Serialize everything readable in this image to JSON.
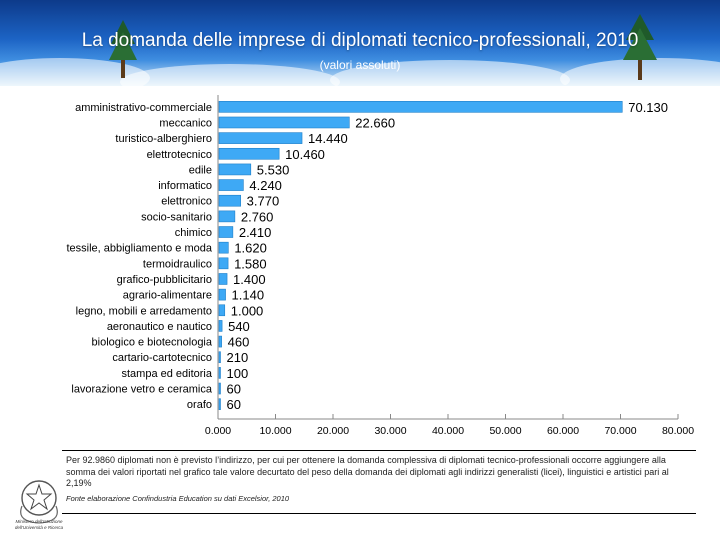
{
  "header": {
    "title": "La domanda delle imprese di diplomati tecnico-professionali, 2010",
    "subtitle": "(valori assoluti)"
  },
  "chart_data": {
    "type": "bar",
    "orientation": "horizontal",
    "categories": [
      "amministrativo-commerciale",
      "meccanico",
      "turistico-alberghiero",
      "elettrotecnico",
      "edile",
      "informatico",
      "elettronico",
      "socio-sanitario",
      "chimico",
      "tessile, abbigliamento e moda",
      "termoidraulico",
      "grafico-pubblicitario",
      "agrario-alimentare",
      "legno, mobili e arredamento",
      "aeronautico e nautico",
      "biologico e biotecnologia",
      "cartario-cartotecnico",
      "stampa ed editoria",
      "lavorazione vetro e ceramica",
      "orafo"
    ],
    "values": [
      70130,
      22660,
      14440,
      10460,
      5530,
      4240,
      3770,
      2760,
      2410,
      1620,
      1580,
      1400,
      1140,
      1000,
      540,
      460,
      210,
      100,
      60,
      60
    ],
    "value_labels": [
      "70.130",
      "22.660",
      "14.440",
      "10.460",
      "5.530",
      "4.240",
      "3.770",
      "2.760",
      "2.410",
      "1.620",
      "1.580",
      "1.400",
      "1.140",
      "1.000",
      "540",
      "460",
      "210",
      "100",
      "60",
      "60"
    ],
    "xlim": [
      0,
      80000
    ],
    "xticks": [
      0,
      10000,
      20000,
      30000,
      40000,
      50000,
      60000,
      70000,
      80000
    ],
    "xtick_labels": [
      "0.000",
      "10.000",
      "20.000",
      "30.000",
      "40.000",
      "50.000",
      "60.000",
      "70.000",
      "80.000"
    ],
    "bar_color": "#3ea9f5",
    "grid": false
  },
  "footer": {
    "note": "Per 92.9860 diplomati non è previsto l’indirizzo, per cui per ottenere la domanda complessiva di diplomati tecnico-professionali occorre aggiungere alla somma dei valori riportati nel grafico tale valore decurtato del peso della domanda dei diplomati agli indirizzi generalisti (licei), linguistici e artistici pari al 2,19%",
    "source": "Fonte elaborazione Confindustria Education su dati Excelsior, 2010",
    "ministry": "Ministero dell’Istruzione dell’Università e Ricerca"
  }
}
